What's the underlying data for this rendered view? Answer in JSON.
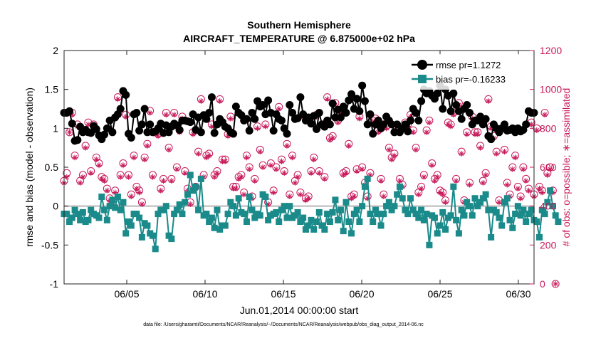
{
  "chart_data": {
    "type": "line",
    "title_line1": "Southern Hemisphere",
    "title_line2": "AIRCRAFT_TEMPERATURE @ 6.875000e+02 hPa",
    "xlabel": "Jun.01,2014 00:00:00 start",
    "ylabel_left": "rmse and bias (model - observation)",
    "ylabel_right": "# of obs: o=possible; ∗=assimilated",
    "footnote": "data file: /Users/gharamti/Documents/NCAR/Reanalysis/~/Documents/NCAR/Reanalysis/webpub/obs_diag_output_2014-06.nc",
    "x_ticks": [
      "06/05",
      "06/10",
      "06/15",
      "06/20",
      "06/25",
      "06/30"
    ],
    "x_tick_days": [
      5,
      10,
      15,
      20,
      25,
      30
    ],
    "xlim_days": [
      1,
      31
    ],
    "ylim_left": [
      -1,
      2
    ],
    "yticks_left": [
      "-1",
      "-0.5",
      "0",
      "0.5",
      "1",
      "1.5",
      "2"
    ],
    "ylim_right": [
      0,
      1200
    ],
    "yticks_right": [
      "0",
      "200",
      "400",
      "600",
      "800",
      "1000",
      "1200"
    ],
    "legend_position": "top-right",
    "colors": {
      "rmse": "#000000",
      "bias": "#1a8a8a",
      "obs": "#c8195a",
      "zero_line": "#b8b8b8"
    },
    "series": [
      {
        "name": "rmse pr=1.1272",
        "values": [
          1.2,
          1.2,
          1.22,
          1.06,
          0.84,
          0.85,
          1.02,
          0.95,
          0.98,
          0.95,
          0.94,
          1.03,
          0.99,
          0.91,
          0.86,
          0.92,
          1.0,
          1.1,
          0.95,
          1.14,
          1.18,
          1.25,
          1.48,
          1.43,
          0.93,
          0.88,
          1.18,
          1.2,
          0.97,
          1.05,
          1.25,
          0.95,
          1.05,
          0.95,
          0.96,
          1.0,
          1.06,
          0.94,
          1.04,
          0.95,
          1.02,
          1.06,
          1.04,
          0.98,
          1.1,
          1.1,
          1.09,
          1.08,
          1.18,
          0.98,
          1.14,
          0.95,
          1.17,
          1.12,
          1.2,
          1.4,
          0.94,
          1.05,
          1.12,
          1.08,
          1.02,
          1.0,
          0.95,
          0.93,
          1.28,
          1.2,
          1.17,
          1.1,
          1.12,
          0.97,
          1.2,
          1.12,
          1.35,
          1.28,
          1.3,
          1.18,
          1.36,
          1.2,
          0.97,
          1.18,
          1.12,
          1.1,
          1.0,
          0.93,
          1.3,
          1.2,
          1.12,
          1.13,
          1.4,
          1.18,
          1.1,
          1.14,
          1.06,
          1.16,
          0.99,
          1.2,
          1.05,
          1.02,
          1.1,
          1.05,
          1.32,
          1.14,
          1.24,
          1.14,
          1.28,
          1.2,
          1.36,
          1.44,
          1.25,
          1.38,
          1.22,
          1.55,
          1.35,
          1.05,
          1.18,
          0.93,
          1.05,
          1.1,
          1.0,
          1.05,
          1.15,
          1.1,
          1.05,
          0.95,
          1.05,
          0.95,
          1.0,
          1.05,
          0.96,
          1.1,
          1.25,
          1.2,
          1.1,
          1.35,
          1.5,
          1.45,
          1.48,
          1.42,
          1.38,
          1.45,
          1.55,
          1.25,
          1.5,
          1.42,
          1.22,
          1.45,
          1.3,
          1.22,
          1.12,
          1.25,
          1.3,
          1.2,
          1.05,
          1.1,
          1.1,
          1.15,
          1.05,
          1.12,
          0.9,
          0.86,
          1.05,
          1.0,
          0.95,
          1.0,
          1.05,
          0.97,
          0.98,
          1.0,
          0.95,
          1.0,
          0.96,
          0.98,
          1.05,
          1.22,
          1.2,
          1.2
        ]
      },
      {
        "name": "bias pr=-0.16233",
        "values": [
          -0.1,
          -0.1,
          -0.2,
          -0.15,
          -0.05,
          -0.1,
          -0.18,
          -0.08,
          -0.2,
          -0.18,
          -0.05,
          -0.1,
          -0.12,
          -0.15,
          0.12,
          -0.05,
          -0.18,
          0.0,
          0.08,
          -0.02,
          0.12,
          -0.05,
          0.05,
          -0.35,
          -0.2,
          -0.25,
          -0.1,
          -0.1,
          -0.15,
          -0.4,
          -0.22,
          -0.25,
          -0.35,
          -0.38,
          -0.55,
          -0.1,
          -0.05,
          -0.05,
          0.0,
          -0.38,
          -0.42,
          -0.1,
          -0.05,
          0.02,
          -0.1,
          0.05,
          0.15,
          0.4,
          0.2,
          0.25,
          -0.05,
          0.35,
          -0.12,
          -0.1,
          -0.2,
          -0.15,
          -0.28,
          -0.05,
          -0.3,
          -0.25,
          -0.25,
          -0.1,
          0.05,
          0.0,
          -0.12,
          0.1,
          -0.08,
          -0.1,
          -0.2,
          0.12,
          -0.05,
          -0.15,
          -0.1,
          -0.12,
          0.15,
          0.12,
          -0.18,
          -0.12,
          -0.1,
          -0.08,
          -0.2,
          -0.05,
          0.0,
          -0.15,
          0.0,
          -0.15,
          -0.12,
          -0.08,
          -0.2,
          -0.15,
          -0.3,
          -0.25,
          -0.18,
          -0.3,
          -0.2,
          -0.08,
          -0.25,
          -0.3,
          -0.1,
          -0.2,
          -0.08,
          0.08,
          -0.18,
          -0.05,
          -0.32,
          0.05,
          -0.2,
          -0.35,
          -0.1,
          -0.05,
          -0.2,
          0.0,
          0.25,
          0.35,
          -0.1,
          -0.2,
          -0.05,
          -0.1,
          -0.25,
          -0.1,
          0.0,
          0.05,
          -0.05,
          0.0,
          0.15,
          0.25,
          0.1,
          -0.05,
          -0.1,
          0.1,
          -0.05,
          -0.1,
          -0.15,
          -0.05,
          -0.18,
          -0.1,
          -0.5,
          -0.12,
          -0.15,
          -0.35,
          -0.25,
          -0.08,
          -0.3,
          -0.15,
          -0.12,
          0.25,
          -0.18,
          -0.35,
          -0.05,
          -0.12,
          0.05,
          0.0,
          -0.12,
          0.1,
          0.0,
          0.05,
          0.1,
          0.15,
          -0.05,
          -0.4,
          -0.05,
          -0.08,
          -0.15,
          -0.25,
          0.05,
          0.1,
          -0.18,
          -0.28,
          -0.1,
          0.0,
          -0.12,
          -0.05,
          -0.2,
          -0.1,
          -0.05,
          -0.18,
          -0.2,
          -0.4,
          -0.05,
          -0.1,
          0.05,
          0.2,
          0.0,
          -0.12,
          -0.2
        ]
      },
      {
        "name": "possible",
        "values": [
          530,
          570,
          780,
          880,
          660,
          820,
          530,
          560,
          710,
          830,
          580,
          820,
          650,
          620,
          550,
          540,
          490,
          440,
          420,
          480,
          960,
          560,
          620,
          870,
          560,
          460,
          660,
          500,
          480,
          420,
          650,
          720,
          890,
          560,
          780,
          770,
          490,
          540,
          880,
          700,
          540,
          880,
          600,
          790,
          860,
          580,
          490,
          420,
          780,
          500,
          680,
          950,
          560,
          660,
          670,
          820,
          560,
          580,
          950,
          640,
          640,
          770,
          860,
          500,
          500,
          550,
          560,
          470,
          660,
          600,
          450,
          540,
          810,
          690,
          610,
          820,
          420,
          620,
          480,
          600,
          910,
          640,
          580,
          720,
          460,
          660,
          530,
          560,
          470,
          870,
          440,
          450,
          580,
          650,
          870,
          580,
          820,
          550,
          960,
          750,
          760,
          930,
          840,
          880,
          570,
          580,
          720,
          450,
          460,
          590,
          860,
          600,
          520,
          450,
          570,
          840,
          850,
          790,
          540,
          460,
          810,
          700,
          650,
          670,
          800,
          540,
          510,
          830,
          820,
          870,
          790,
          700,
          470,
          500,
          560,
          790,
          840,
          620,
          540,
          560,
          480,
          470,
          430,
          830,
          820,
          880,
          540,
          930,
          680,
          430,
          780,
          520,
          860,
          780,
          780,
          710,
          530,
          570,
          950,
          810,
          760,
          680,
          430,
          800,
          690,
          520,
          460,
          600,
          660,
          500,
          450,
          600,
          540,
          490,
          830,
          460,
          800,
          500,
          480,
          880,
          570,
          600,
          480,
          0
        ]
      },
      {
        "name": "assimilated",
        "values": [
          520,
          550,
          780,
          870,
          650,
          810,
          520,
          550,
          700,
          820,
          570,
          810,
          640,
          610,
          540,
          530,
          480,
          430,
          410,
          470,
          950,
          550,
          610,
          860,
          550,
          450,
          650,
          490,
          470,
          410,
          640,
          710,
          880,
          550,
          770,
          760,
          480,
          530,
          870,
          690,
          530,
          870,
          590,
          780,
          850,
          570,
          480,
          410,
          770,
          490,
          670,
          940,
          550,
          650,
          660,
          810,
          550,
          570,
          940,
          630,
          630,
          760,
          850,
          490,
          490,
          540,
          550,
          460,
          650,
          590,
          440,
          530,
          800,
          680,
          600,
          810,
          410,
          610,
          470,
          590,
          900,
          630,
          570,
          710,
          450,
          650,
          520,
          550,
          460,
          860,
          430,
          440,
          570,
          640,
          860,
          570,
          810,
          540,
          950,
          740,
          750,
          920,
          830,
          870,
          560,
          570,
          710,
          440,
          450,
          580,
          850,
          590,
          510,
          440,
          560,
          830,
          840,
          780,
          530,
          450,
          800,
          690,
          640,
          660,
          790,
          530,
          500,
          820,
          810,
          860,
          780,
          690,
          460,
          490,
          550,
          780,
          830,
          610,
          530,
          550,
          470,
          460,
          420,
          820,
          810,
          870,
          530,
          920,
          670,
          420,
          770,
          510,
          850,
          770,
          770,
          700,
          520,
          560,
          940,
          800,
          750,
          670,
          420,
          790,
          680,
          510,
          450,
          590,
          650,
          490,
          440,
          590,
          530,
          480,
          820,
          450,
          790,
          490,
          470,
          870,
          560,
          590,
          470,
          0
        ]
      }
    ]
  }
}
